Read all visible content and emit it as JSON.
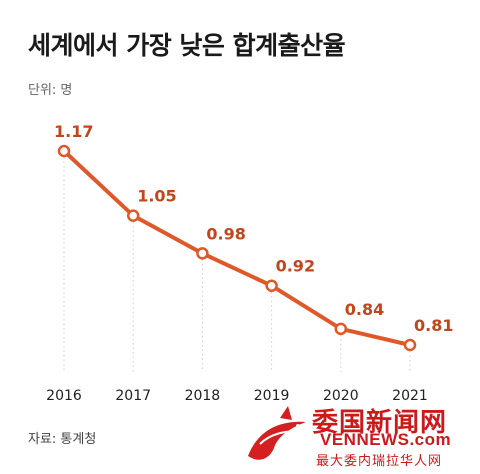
{
  "header": {
    "title": "세계에서 가장 낮은 합계출산율",
    "unit": "단위: 명"
  },
  "footer": {
    "source": "자료: 통계청"
  },
  "watermark": {
    "cn_title": "委国新闻网",
    "url": "VENNEWS.com",
    "subtitle": "最大委内瑞拉华人网"
  },
  "colors": {
    "line": "#e0582a",
    "label": "#c2451b",
    "marker_fill": "#ffffff"
  },
  "chart_data": {
    "type": "line",
    "title": "세계에서 가장 낮은 합계출산율",
    "unit": "단위: 명",
    "categories": [
      "2016",
      "2017",
      "2018",
      "2019",
      "2020",
      "2021"
    ],
    "series": [
      {
        "values": [
          1.17,
          1.05,
          0.98,
          0.92,
          0.84,
          0.81
        ]
      }
    ],
    "data_labels": [
      "1.17",
      "1.05",
      "0.98",
      "0.92",
      "0.84",
      "0.81"
    ],
    "ylim": [
      0.75,
      1.2
    ],
    "grid": "vertical dotted guides from points to x-axis",
    "legend": "none"
  }
}
